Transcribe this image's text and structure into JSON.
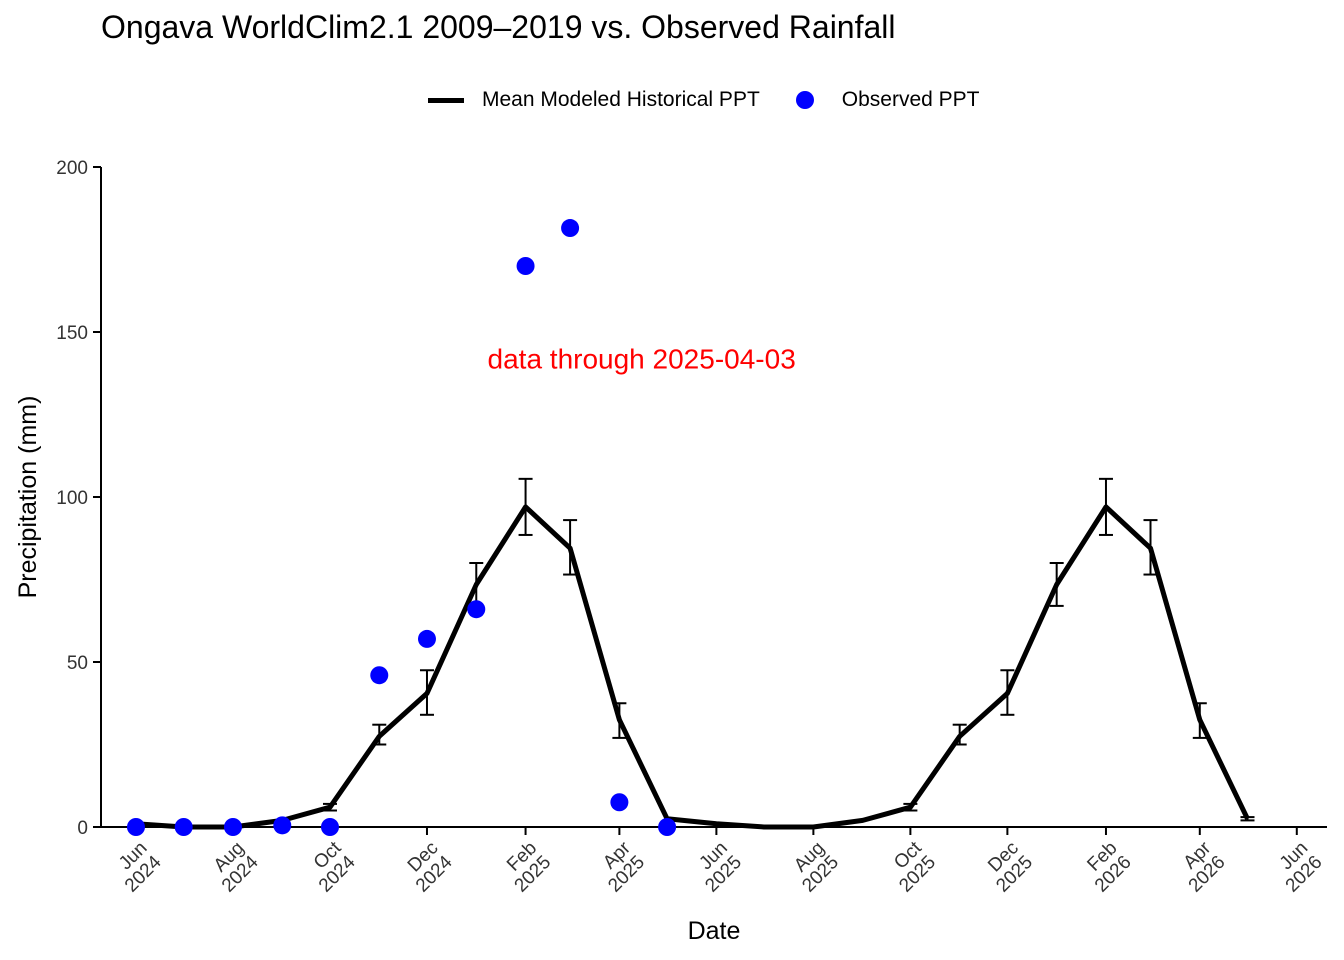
{
  "chart_data": {
    "type": "line",
    "title": "Ongava WorldClim2.1 2009–2019 vs. Observed Rainfall",
    "xlabel": "Date",
    "ylabel": "Precipitation (mm)",
    "ylim": [
      0,
      200
    ],
    "y_ticks": [
      0,
      50,
      100,
      150,
      200
    ],
    "x_range": [
      "2024-05-10",
      "2026-06-20"
    ],
    "x_ticks": [
      {
        "date": "2024-06-01",
        "line1": "Jun",
        "line2": "2024"
      },
      {
        "date": "2024-08-01",
        "line1": "Aug",
        "line2": "2024"
      },
      {
        "date": "2024-10-01",
        "line1": "Oct",
        "line2": "2024"
      },
      {
        "date": "2024-12-01",
        "line1": "Dec",
        "line2": "2024"
      },
      {
        "date": "2025-02-01",
        "line1": "Feb",
        "line2": "2025"
      },
      {
        "date": "2025-04-01",
        "line1": "Apr",
        "line2": "2025"
      },
      {
        "date": "2025-06-01",
        "line1": "Jun",
        "line2": "2025"
      },
      {
        "date": "2025-08-01",
        "line1": "Aug",
        "line2": "2025"
      },
      {
        "date": "2025-10-01",
        "line1": "Oct",
        "line2": "2025"
      },
      {
        "date": "2025-12-01",
        "line1": "Dec",
        "line2": "2025"
      },
      {
        "date": "2026-02-01",
        "line1": "Feb",
        "line2": "2026"
      },
      {
        "date": "2026-04-01",
        "line1": "Apr",
        "line2": "2026"
      },
      {
        "date": "2026-06-01",
        "line1": "Jun",
        "line2": "2026"
      }
    ],
    "legend": {
      "position": "top"
    },
    "grid": false,
    "annotation": {
      "text": "data through 2025-04-03",
      "x": "2025-04-15",
      "y": 139,
      "color": "#ff0000"
    },
    "series": [
      {
        "name": "Mean Modeled Historical PPT",
        "type": "line",
        "color": "#000000",
        "points": [
          {
            "date": "2024-06-01",
            "y": 1,
            "lo": null,
            "hi": null
          },
          {
            "date": "2024-07-01",
            "y": 0,
            "lo": null,
            "hi": null
          },
          {
            "date": "2024-08-01",
            "y": 0,
            "lo": null,
            "hi": null
          },
          {
            "date": "2024-09-01",
            "y": 2,
            "lo": null,
            "hi": null
          },
          {
            "date": "2024-10-01",
            "y": 6,
            "lo": 5,
            "hi": 7
          },
          {
            "date": "2024-11-01",
            "y": 27.5,
            "lo": 25,
            "hi": 31
          },
          {
            "date": "2024-12-01",
            "y": 40.5,
            "lo": 34,
            "hi": 47.5
          },
          {
            "date": "2025-01-01",
            "y": 73.5,
            "lo": 67,
            "hi": 80
          },
          {
            "date": "2025-02-01",
            "y": 97,
            "lo": 88.5,
            "hi": 105.5
          },
          {
            "date": "2025-03-01",
            "y": 84.5,
            "lo": 76.5,
            "hi": 93
          },
          {
            "date": "2025-04-01",
            "y": 32.5,
            "lo": 27,
            "hi": 37.5
          },
          {
            "date": "2025-05-01",
            "y": 2.5,
            "lo": null,
            "hi": null
          },
          {
            "date": "2025-06-01",
            "y": 1,
            "lo": null,
            "hi": null
          },
          {
            "date": "2025-07-01",
            "y": 0,
            "lo": null,
            "hi": null
          },
          {
            "date": "2025-08-01",
            "y": 0,
            "lo": null,
            "hi": null
          },
          {
            "date": "2025-09-01",
            "y": 2,
            "lo": null,
            "hi": null
          },
          {
            "date": "2025-10-01",
            "y": 6,
            "lo": 5,
            "hi": 7
          },
          {
            "date": "2025-11-01",
            "y": 27.5,
            "lo": 25,
            "hi": 31
          },
          {
            "date": "2025-12-01",
            "y": 40.5,
            "lo": 34,
            "hi": 47.5
          },
          {
            "date": "2026-01-01",
            "y": 73.5,
            "lo": 67,
            "hi": 80
          },
          {
            "date": "2026-02-01",
            "y": 97,
            "lo": 88.5,
            "hi": 105.5
          },
          {
            "date": "2026-03-01",
            "y": 84.5,
            "lo": 76.5,
            "hi": 93
          },
          {
            "date": "2026-04-01",
            "y": 32.5,
            "lo": 27,
            "hi": 37.5
          },
          {
            "date": "2026-05-01",
            "y": 2.5,
            "lo": 2,
            "hi": 3
          }
        ]
      },
      {
        "name": "Observed PPT",
        "type": "scatter",
        "color": "#0000ff",
        "points": [
          {
            "date": "2024-06-01",
            "y": 0
          },
          {
            "date": "2024-07-01",
            "y": 0
          },
          {
            "date": "2024-08-01",
            "y": 0
          },
          {
            "date": "2024-09-01",
            "y": 0.5
          },
          {
            "date": "2024-10-01",
            "y": 0
          },
          {
            "date": "2024-11-01",
            "y": 46
          },
          {
            "date": "2024-12-01",
            "y": 57
          },
          {
            "date": "2025-01-01",
            "y": 66
          },
          {
            "date": "2025-02-01",
            "y": 170
          },
          {
            "date": "2025-03-01",
            "y": 181.5
          },
          {
            "date": "2025-04-01",
            "y": 7.5
          },
          {
            "date": "2025-05-01",
            "y": 0
          }
        ]
      }
    ]
  }
}
